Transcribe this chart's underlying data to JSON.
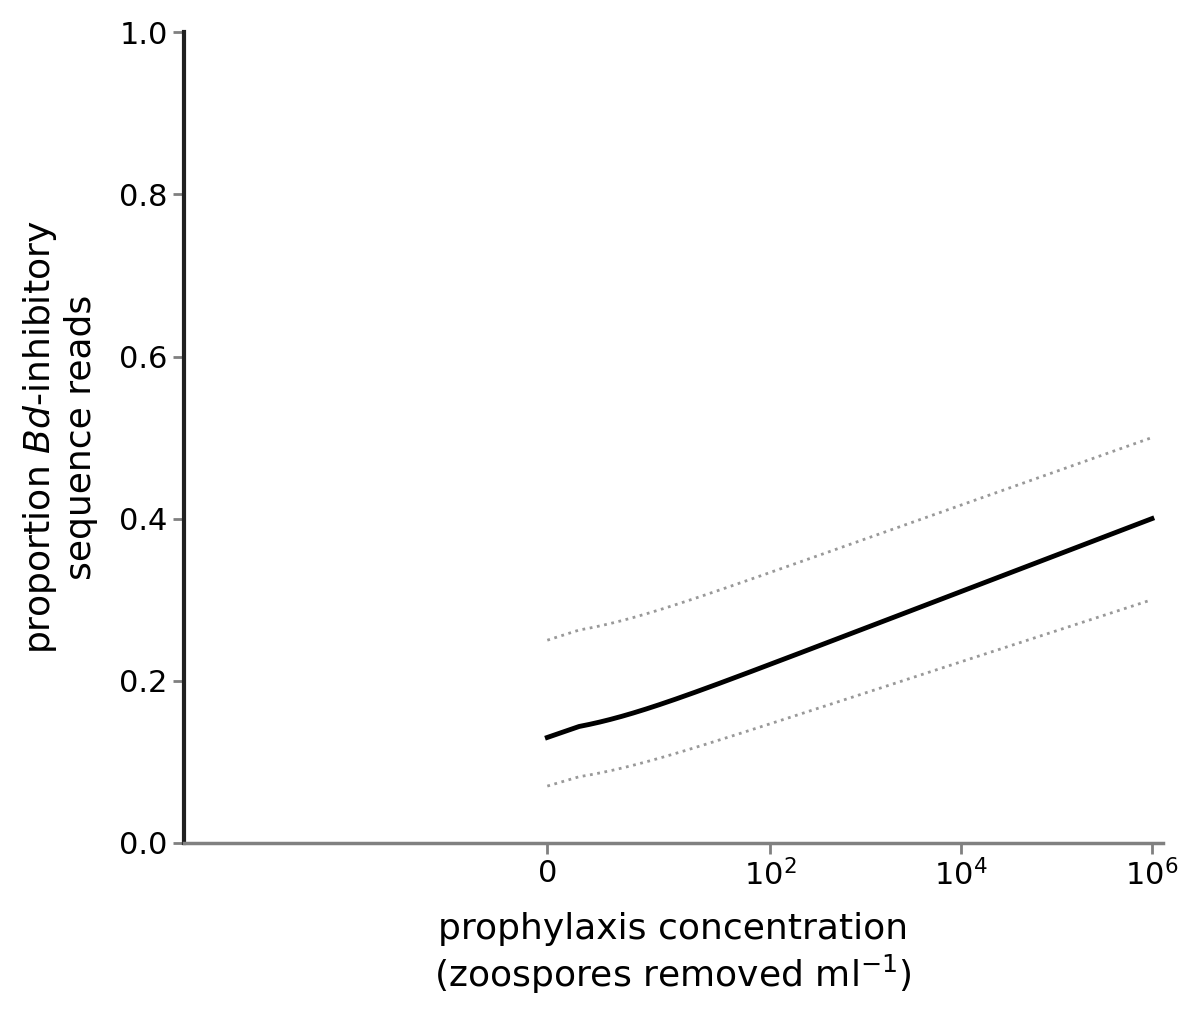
{
  "title": "",
  "ylabel": "proportion $\\mathit{Bd}$-inhibitory\nsequence reads",
  "xlabel_line1": "prophylaxis concentration",
  "xlabel_line2": "(zoospores removed ml$^{-1}$)",
  "ylim": [
    0,
    1.0
  ],
  "yticks": [
    0,
    0.2,
    0.4,
    0.6,
    0.8,
    1.0
  ],
  "main_line_color": "#000000",
  "ci_line_color": "#999999",
  "background_color": "#ffffff",
  "main_linewidth": 3.5,
  "ci_linewidth": 2.0,
  "fontsize_ticks": 22,
  "fontsize_label": 26,
  "a_main": 0.13,
  "b_main": 0.045,
  "a_upper": 0.25,
  "b_upper": 0.04167,
  "a_lower": 0.07,
  "b_lower": 0.03833
}
